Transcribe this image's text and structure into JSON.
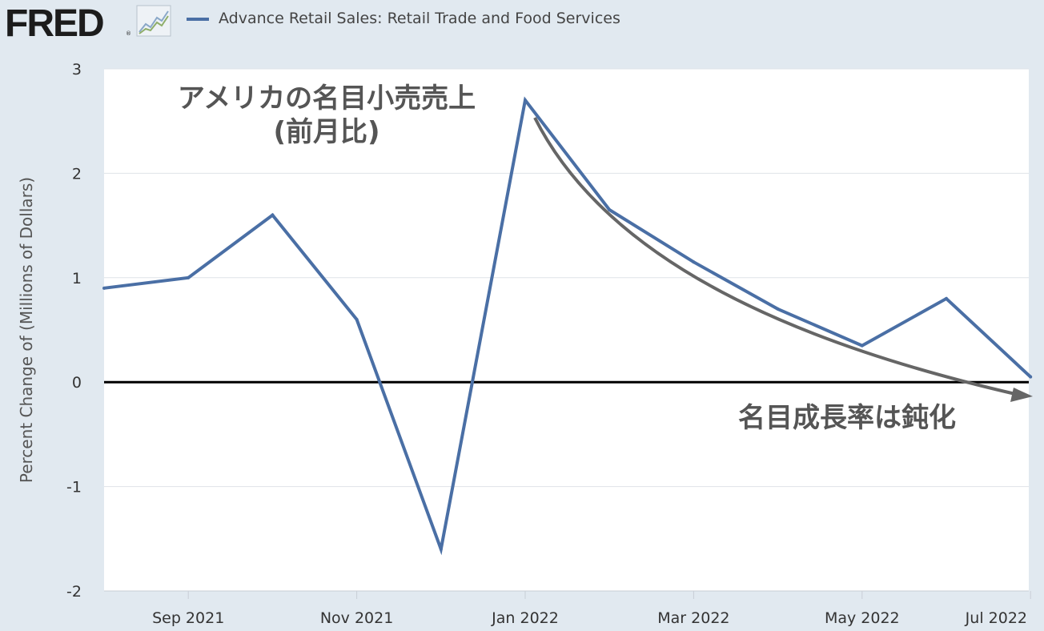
{
  "header": {
    "logo_text": "FRED",
    "logo_mark": "®",
    "logo_icon": "line-chart-icon",
    "legend_label": "Advance Retail Sales: Retail Trade and Food Services"
  },
  "chart_data": {
    "type": "line",
    "ylabel": "Percent Change of (Millions of Dollars)",
    "xlabel": "",
    "ylim": [
      -2,
      3
    ],
    "yticks": [
      "3",
      "2",
      "1",
      "0",
      "-1",
      "-2"
    ],
    "xticks": [
      "Sep 2021",
      "Nov 2021",
      "Jan 2022",
      "Mar 2022",
      "May 2022",
      "Jul 2022"
    ],
    "x": [
      "2021-08",
      "2021-09",
      "2021-10",
      "2021-11",
      "2021-12",
      "2022-01",
      "2022-02",
      "2022-03",
      "2022-04",
      "2022-05",
      "2022-06",
      "2022-07"
    ],
    "series": [
      {
        "name": "Advance Retail Sales: Retail Trade and Food Services",
        "color": "#4a6fa5",
        "values": [
          0.9,
          1.0,
          1.6,
          0.6,
          -1.6,
          2.7,
          1.65,
          1.15,
          0.7,
          0.35,
          0.8,
          0.05
        ]
      }
    ],
    "grid": true,
    "zero_line": true,
    "annotations": {
      "title_line1": "アメリカの名目小売売上",
      "title_line2": "(前月比)",
      "arrow_label": "名目成長率は鈍化"
    }
  }
}
